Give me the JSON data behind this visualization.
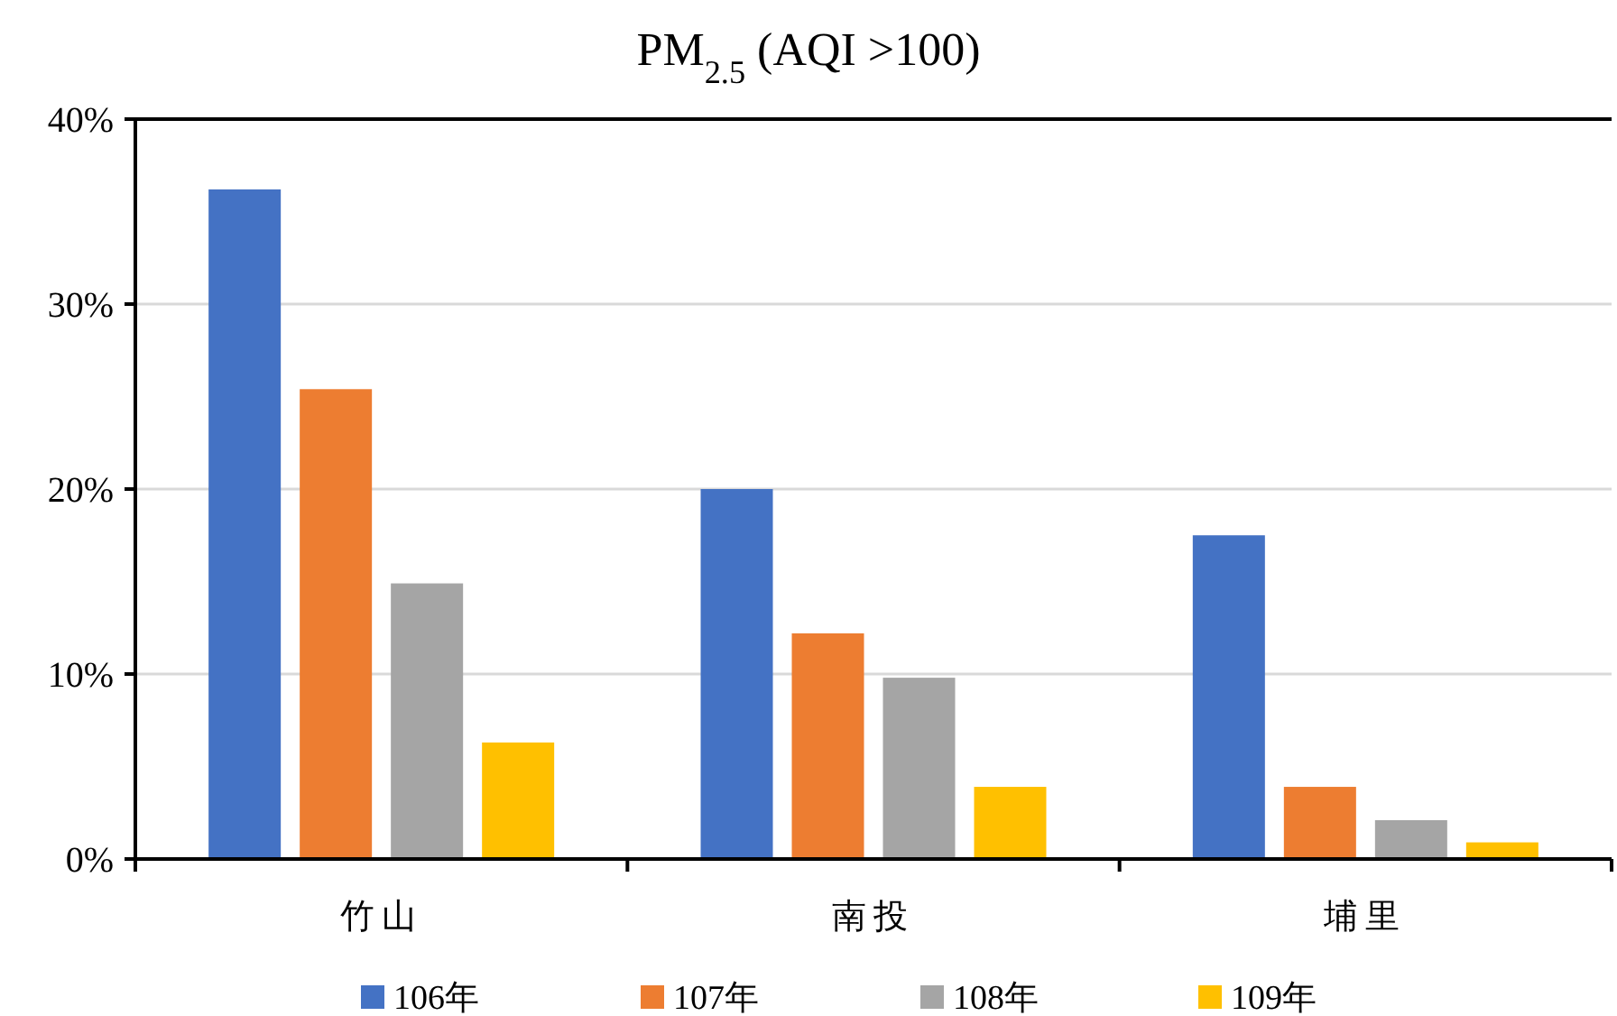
{
  "chart_data": {
    "type": "bar",
    "title": "PM$_{2.5}$ (AQI >100)",
    "categories": [
      "竹山",
      "南投",
      "埔里"
    ],
    "series": [
      {
        "name": "106年",
        "color": "#4472c4",
        "values": [
          36.2,
          20.0,
          17.5
        ]
      },
      {
        "name": "107年",
        "color": "#ed7d31",
        "values": [
          25.4,
          12.2,
          3.9
        ]
      },
      {
        "name": "108年",
        "color": "#a5a5a5",
        "values": [
          14.9,
          9.8,
          2.1
        ]
      },
      {
        "name": "109年",
        "color": "#ffc000",
        "values": [
          6.3,
          3.9,
          0.9
        ]
      }
    ],
    "ylim": [
      0,
      40
    ],
    "yticks": [
      {
        "value": 0,
        "label": "0%"
      },
      {
        "value": 10,
        "label": "10%"
      },
      {
        "value": 20,
        "label": "20%"
      },
      {
        "value": 30,
        "label": "30%"
      },
      {
        "value": 40,
        "label": "40%"
      }
    ],
    "grid": "y",
    "legend": "bottom"
  }
}
